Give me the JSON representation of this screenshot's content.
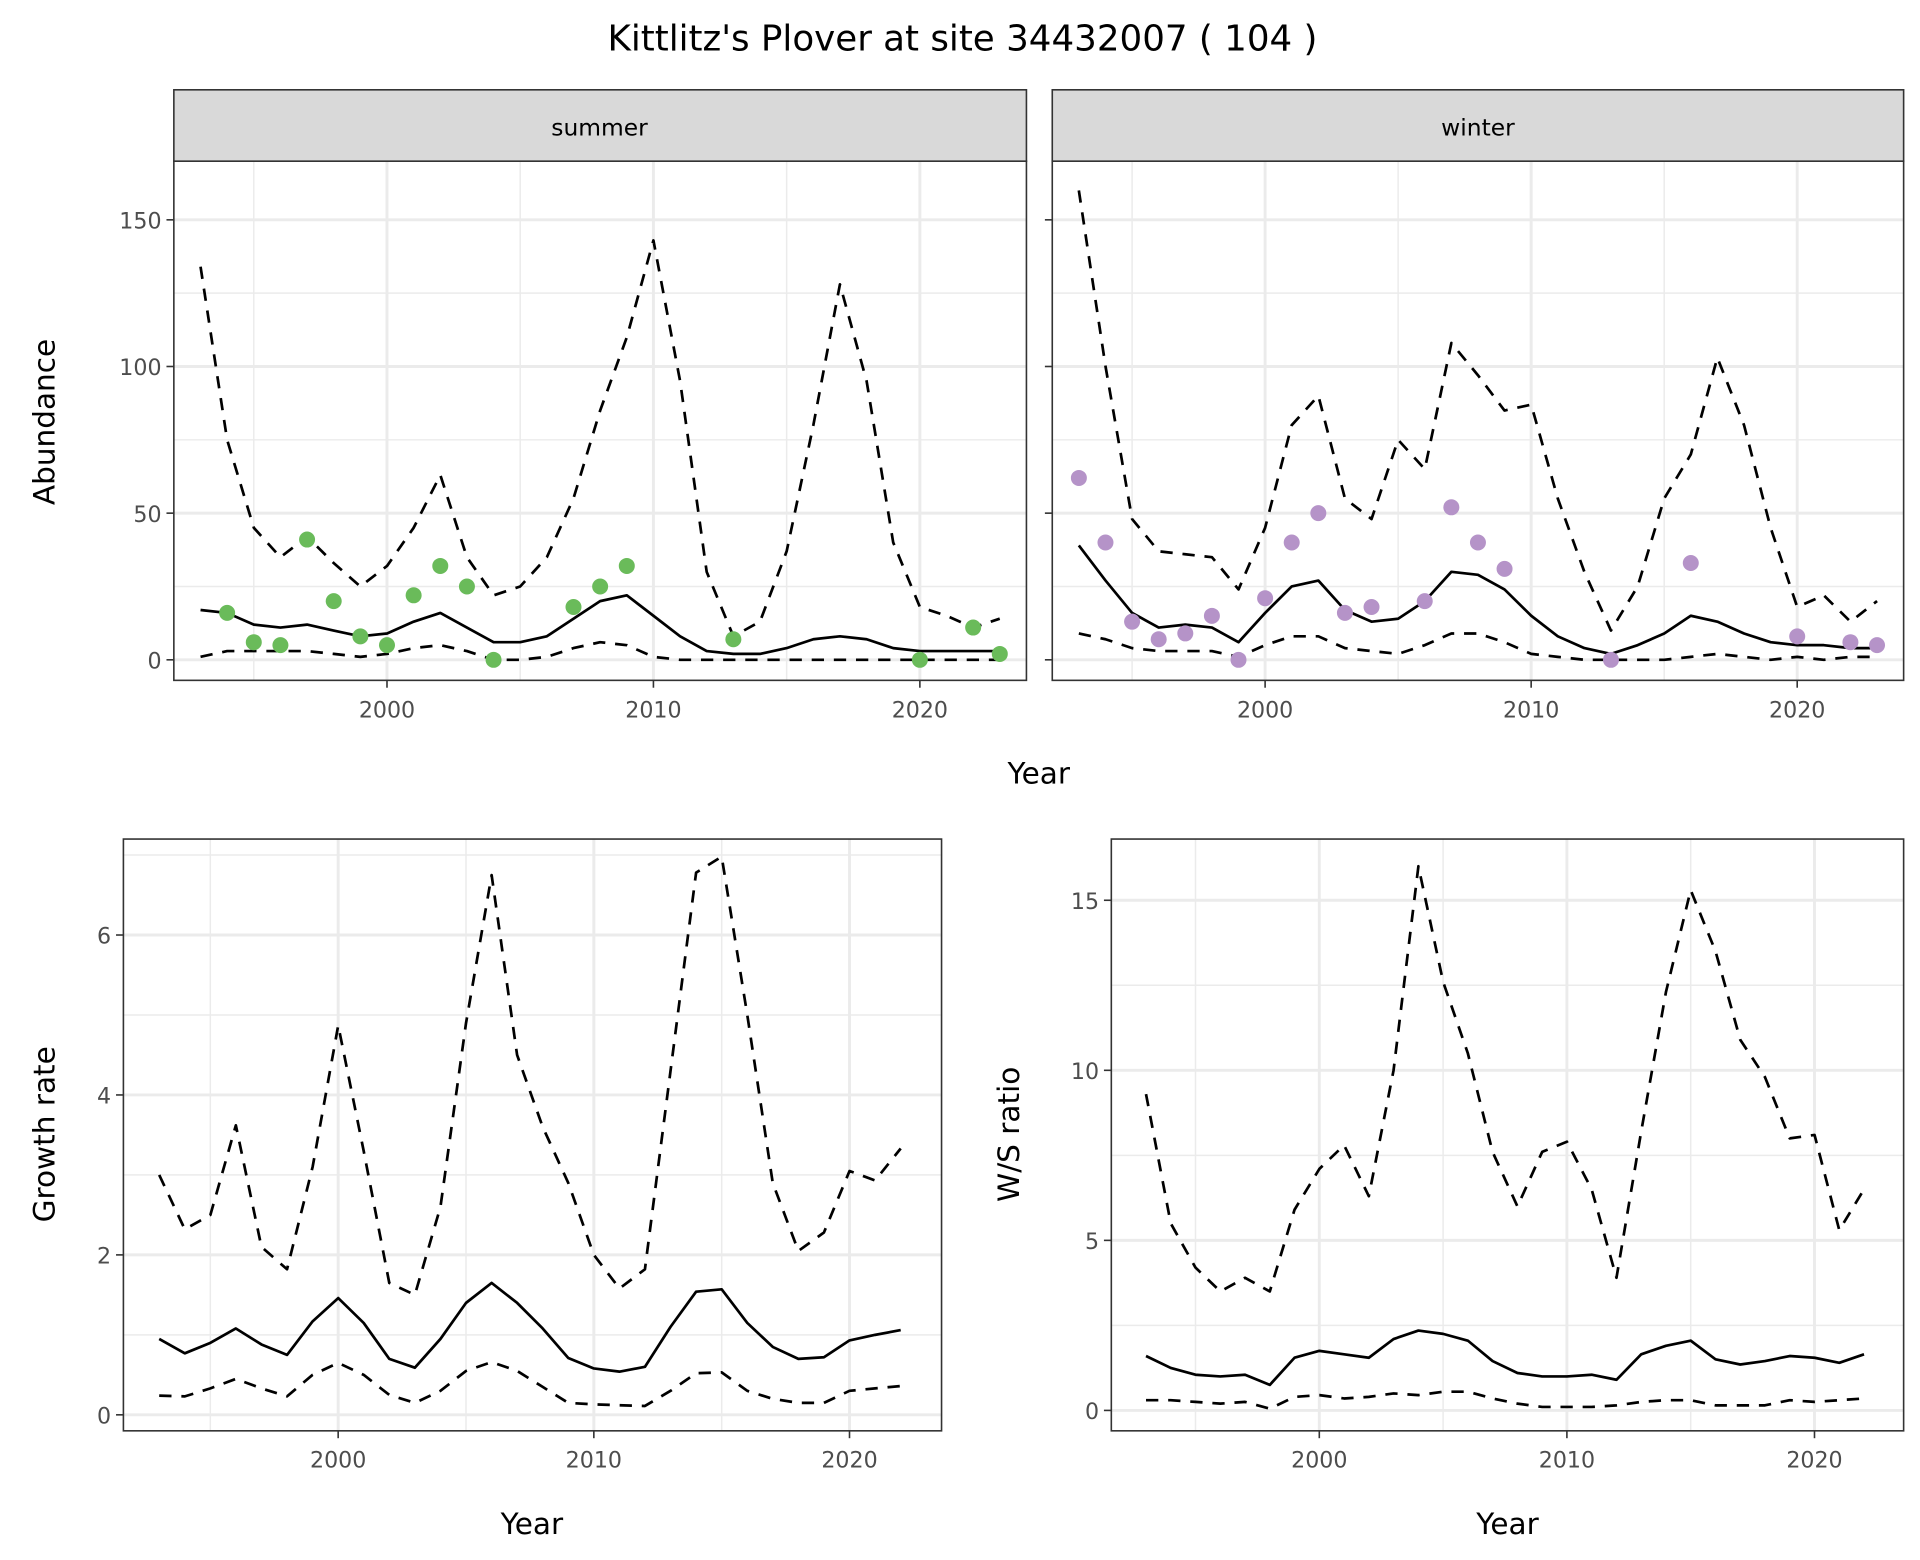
{
  "colors": {
    "summer_points": "#6ABB5A",
    "winter_points": "#B593C8",
    "line": "#000000",
    "grid": "#EBEBEB",
    "strip": "#D9D9D9"
  },
  "chart_data": [
    {
      "type": "line",
      "title": "Kittlitz's Plover at site 34432007 ( 104 )",
      "panel": "summer",
      "xlabel": "Year",
      "ylabel": "Abundance",
      "xlim": [
        1992,
        2024
      ],
      "ylim": [
        -7,
        170
      ],
      "xticks": [
        2000,
        2010,
        2020
      ],
      "yticks": [
        0,
        50,
        100,
        150
      ],
      "x": [
        1993,
        1994,
        1995,
        1996,
        1997,
        1998,
        1999,
        2000,
        2001,
        2002,
        2003,
        2004,
        2005,
        2006,
        2007,
        2008,
        2009,
        2010,
        2011,
        2012,
        2013,
        2014,
        2015,
        2016,
        2017,
        2018,
        2019,
        2020,
        2021,
        2022,
        2023
      ],
      "series": [
        {
          "name": "mean",
          "style": "solid",
          "values": [
            17,
            16,
            12,
            11,
            12,
            10,
            8,
            9,
            13,
            16,
            11,
            6,
            6,
            8,
            14,
            20,
            22,
            15,
            8,
            3,
            2,
            2,
            4,
            7,
            8,
            7,
            4,
            3,
            3,
            3,
            3
          ]
        },
        {
          "name": "upper",
          "style": "dashed",
          "values": [
            134,
            75,
            45,
            35,
            42,
            33,
            25,
            32,
            45,
            63,
            35,
            22,
            25,
            35,
            55,
            85,
            110,
            143,
            95,
            30,
            8,
            13,
            37,
            80,
            128,
            95,
            40,
            18,
            15,
            11,
            14
          ]
        },
        {
          "name": "lower",
          "style": "dashed",
          "values": [
            1,
            3,
            3,
            3,
            3,
            2,
            1,
            2,
            4,
            5,
            3,
            0,
            0,
            1,
            4,
            6,
            5,
            1,
            0,
            0,
            0,
            0,
            0,
            0,
            0,
            0,
            0,
            0,
            0,
            0,
            0
          ]
        }
      ],
      "points": {
        "x": [
          1994,
          1995,
          1996,
          1997,
          1998,
          1999,
          2000,
          2001,
          2002,
          2003,
          2004,
          2007,
          2008,
          2009,
          2013,
          2020,
          2022,
          2023
        ],
        "y": [
          16,
          6,
          5,
          41,
          20,
          8,
          5,
          22,
          32,
          25,
          0,
          18,
          25,
          32,
          7,
          0,
          11,
          2
        ]
      }
    },
    {
      "type": "line",
      "panel": "winter",
      "xlabel": "Year",
      "ylabel": "Abundance",
      "xlim": [
        1992,
        2024
      ],
      "ylim": [
        -7,
        170
      ],
      "xticks": [
        2000,
        2010,
        2020
      ],
      "yticks": [
        0,
        50,
        100,
        150
      ],
      "x": [
        1993,
        1994,
        1995,
        1996,
        1997,
        1998,
        1999,
        2000,
        2001,
        2002,
        2003,
        2004,
        2005,
        2006,
        2007,
        2008,
        2009,
        2010,
        2011,
        2012,
        2013,
        2014,
        2015,
        2016,
        2017,
        2018,
        2019,
        2020,
        2021,
        2022,
        2023
      ],
      "series": [
        {
          "name": "mean",
          "style": "solid",
          "values": [
            39,
            27,
            16,
            11,
            12,
            11,
            6,
            16,
            25,
            27,
            17,
            13,
            14,
            20,
            30,
            29,
            24,
            15,
            8,
            4,
            2,
            5,
            9,
            15,
            13,
            9,
            6,
            5,
            5,
            4,
            4
          ]
        },
        {
          "name": "upper",
          "style": "dashed",
          "values": [
            160,
            100,
            48,
            37,
            36,
            35,
            24,
            45,
            80,
            90,
            55,
            48,
            75,
            65,
            108,
            97,
            85,
            87,
            55,
            30,
            10,
            25,
            55,
            70,
            103,
            80,
            45,
            18,
            22,
            13,
            20
          ]
        },
        {
          "name": "lower",
          "style": "dashed",
          "values": [
            9,
            7,
            4,
            3,
            3,
            3,
            1,
            5,
            8,
            8,
            4,
            3,
            2,
            5,
            9,
            9,
            6,
            2,
            1,
            0,
            0,
            0,
            0,
            1,
            2,
            1,
            0,
            1,
            0,
            1,
            1
          ]
        }
      ],
      "points": {
        "x": [
          1993,
          1994,
          1995,
          1996,
          1997,
          1998,
          1999,
          2000,
          2001,
          2002,
          2003,
          2004,
          2006,
          2007,
          2008,
          2009,
          2013,
          2016,
          2020,
          2022,
          2023
        ],
        "y": [
          62,
          40,
          13,
          7,
          9,
          15,
          0,
          21,
          40,
          50,
          16,
          18,
          20,
          52,
          40,
          31,
          0,
          33,
          8,
          6,
          5
        ]
      }
    },
    {
      "type": "line",
      "panel": "growth",
      "xlabel": "Year",
      "ylabel": "Growth rate",
      "xlim": [
        1991.6,
        2023.6
      ],
      "ylim": [
        -0.2,
        7.2
      ],
      "xticks": [
        2000,
        2010,
        2020
      ],
      "yticks": [
        0,
        2,
        4,
        6
      ],
      "x": [
        1993,
        1994,
        1995,
        1996,
        1997,
        1998,
        1999,
        2000,
        2001,
        2002,
        2003,
        2004,
        2005,
        2006,
        2007,
        2008,
        2009,
        2010,
        2011,
        2012,
        2013,
        2014,
        2015,
        2016,
        2017,
        2018,
        2019,
        2020,
        2021,
        2022
      ],
      "series": [
        {
          "name": "mean",
          "style": "solid",
          "values": [
            0.95,
            0.77,
            0.9,
            1.08,
            0.88,
            0.75,
            1.17,
            1.46,
            1.15,
            0.7,
            0.59,
            0.95,
            1.4,
            1.65,
            1.4,
            1.08,
            0.71,
            0.58,
            0.54,
            0.6,
            1.1,
            1.54,
            1.57,
            1.15,
            0.85,
            0.7,
            0.72,
            0.93,
            1.0,
            1.06
          ]
        },
        {
          "name": "upper",
          "style": "dashed",
          "values": [
            3.0,
            2.32,
            2.5,
            3.62,
            2.1,
            1.82,
            3.1,
            4.87,
            3.3,
            1.65,
            1.5,
            2.6,
            4.9,
            6.75,
            4.5,
            3.6,
            2.9,
            2.0,
            1.58,
            1.82,
            4.3,
            6.78,
            6.98,
            5.0,
            2.9,
            2.05,
            2.28,
            3.05,
            2.93,
            3.33
          ]
        },
        {
          "name": "lower",
          "style": "dashed",
          "values": [
            0.24,
            0.23,
            0.33,
            0.45,
            0.33,
            0.23,
            0.5,
            0.65,
            0.5,
            0.25,
            0.15,
            0.3,
            0.55,
            0.66,
            0.55,
            0.35,
            0.15,
            0.13,
            0.12,
            0.11,
            0.3,
            0.52,
            0.53,
            0.3,
            0.2,
            0.15,
            0.15,
            0.3,
            0.33,
            0.36
          ]
        }
      ]
    },
    {
      "type": "line",
      "panel": "ratio",
      "xlabel": "Year",
      "ylabel": "W/S ratio",
      "xlim": [
        1991.6,
        2023.6
      ],
      "ylim": [
        -0.6,
        16.8
      ],
      "xticks": [
        2000,
        2010,
        2020
      ],
      "yticks": [
        0,
        5,
        10,
        15
      ],
      "x": [
        1993,
        1994,
        1995,
        1996,
        1997,
        1998,
        1999,
        2000,
        2001,
        2002,
        2003,
        2004,
        2005,
        2006,
        2007,
        2008,
        2009,
        2010,
        2011,
        2012,
        2013,
        2014,
        2015,
        2016,
        2017,
        2018,
        2019,
        2020,
        2021,
        2022
      ],
      "series": [
        {
          "name": "mean",
          "style": "solid",
          "values": [
            1.6,
            1.25,
            1.05,
            1.0,
            1.05,
            0.75,
            1.55,
            1.75,
            1.65,
            1.55,
            2.1,
            2.35,
            2.25,
            2.05,
            1.45,
            1.1,
            1.0,
            1.0,
            1.05,
            0.9,
            1.65,
            1.9,
            2.05,
            1.5,
            1.35,
            1.45,
            1.6,
            1.55,
            1.4,
            1.65
          ]
        },
        {
          "name": "upper",
          "style": "dashed",
          "values": [
            9.3,
            5.5,
            4.2,
            3.5,
            3.9,
            3.5,
            5.9,
            7.1,
            7.8,
            6.3,
            10.0,
            16.0,
            12.6,
            10.5,
            7.6,
            6.0,
            7.6,
            7.9,
            6.5,
            3.9,
            8.2,
            12.3,
            15.3,
            13.5,
            10.9,
            9.8,
            8.0,
            8.1,
            5.3,
            6.5
          ]
        },
        {
          "name": "lower",
          "style": "dashed",
          "values": [
            0.3,
            0.3,
            0.25,
            0.2,
            0.25,
            0.05,
            0.4,
            0.45,
            0.35,
            0.4,
            0.5,
            0.45,
            0.55,
            0.55,
            0.35,
            0.2,
            0.1,
            0.1,
            0.1,
            0.15,
            0.25,
            0.3,
            0.3,
            0.15,
            0.15,
            0.15,
            0.3,
            0.25,
            0.3,
            0.35
          ]
        }
      ]
    }
  ],
  "title": "Kittlitz's Plover at site 34432007 ( 104 )",
  "strips": {
    "summer": "summer",
    "winter": "winter"
  },
  "labels": {
    "abundance": "Abundance",
    "growth": "Growth rate",
    "ratio": "W/S ratio",
    "year": "Year"
  }
}
